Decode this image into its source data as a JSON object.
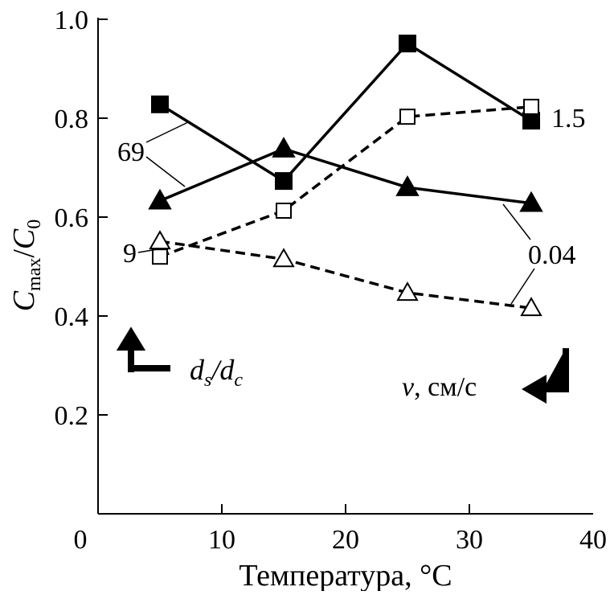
{
  "chart_data": {
    "type": "line",
    "xlabel": "Температура, °C",
    "ylabel_main": "C",
    "ylabel_main_sub": "max",
    "ylabel_den": "C",
    "ylabel_den_sub": "0",
    "xlim": [
      0,
      40
    ],
    "ylim": [
      0,
      1.0
    ],
    "xticks": [
      "0",
      "10",
      "20",
      "30",
      "40"
    ],
    "yticks": [
      "0.2",
      "0.4",
      "0.6",
      "0.8",
      "1.0"
    ],
    "grid": false,
    "series": [
      {
        "marker": "filled-square",
        "line": "solid",
        "x": [
          5,
          15,
          25,
          35
        ],
        "y": [
          0.828,
          0.673,
          0.951,
          0.795
        ]
      },
      {
        "marker": "filled-triangle",
        "line": "solid",
        "x": [
          5,
          15,
          25,
          35
        ],
        "y": [
          0.633,
          0.738,
          0.66,
          0.628
        ]
      },
      {
        "marker": "open-square",
        "line": "dashed",
        "x": [
          5,
          15,
          25,
          35
        ],
        "y": [
          0.52,
          0.613,
          0.803,
          0.823
        ]
      },
      {
        "marker": "open-triangle",
        "line": "dashed",
        "x": [
          5,
          15,
          25,
          35
        ],
        "y": [
          0.551,
          0.515,
          0.447,
          0.416
        ]
      }
    ],
    "annotations": {
      "ds_dc_high": "69",
      "ds_dc_low": "9",
      "v_high": "1.5",
      "v_low": "0.04",
      "ds_dc_label_d": "d",
      "ds_dc_label_s": "s",
      "ds_dc_label_c": "c",
      "v_label_v": "v",
      "v_label_units": ", см/с"
    }
  }
}
